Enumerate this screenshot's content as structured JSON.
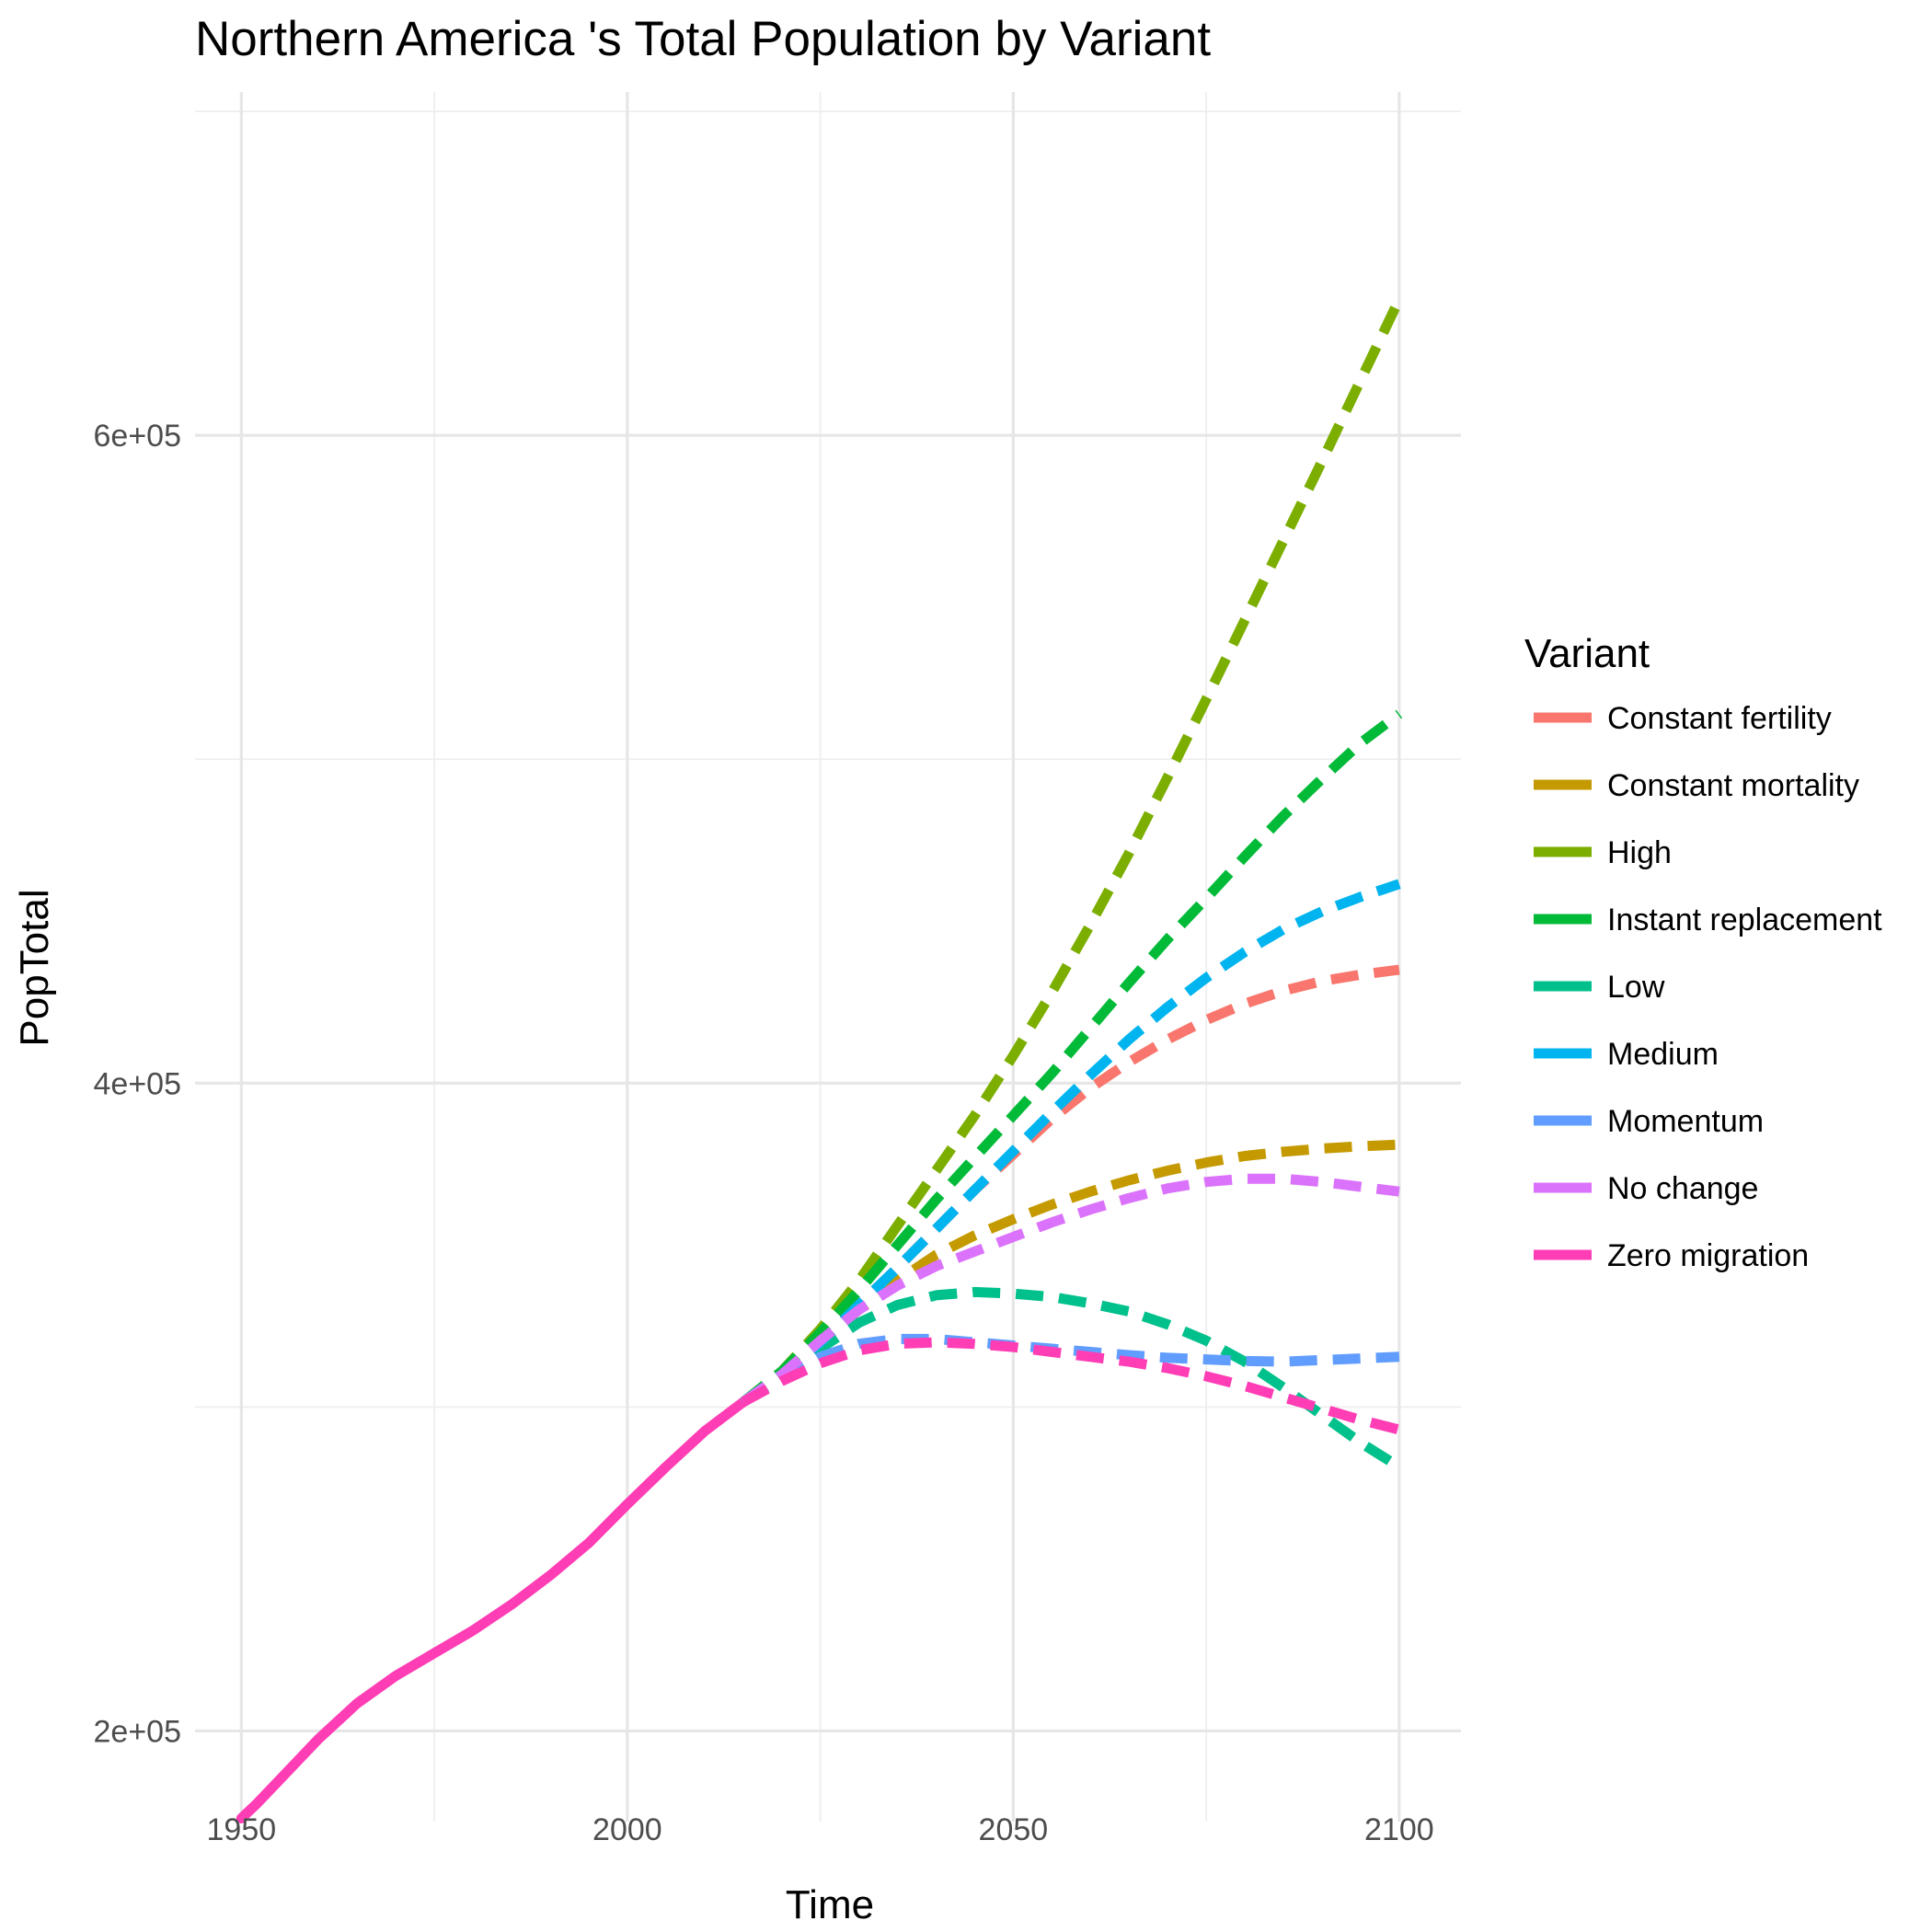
{
  "chart_data": {
    "type": "line",
    "title": "Northern America 's Total Population by Variant",
    "xlabel": "Time",
    "ylabel": "PopTotal",
    "xlim": [
      1944,
      2108
    ],
    "ylim": [
      172000,
      706000
    ],
    "x_ticks": [
      1950,
      2000,
      2050,
      2100
    ],
    "x_tick_labels": [
      "1950",
      "2000",
      "2050",
      "2100"
    ],
    "x_minor_ticks": [
      1975,
      2025,
      2075
    ],
    "y_ticks": [
      200000,
      400000,
      600000
    ],
    "y_tick_labels": [
      "2e+05",
      "4e+05",
      "6e+05"
    ],
    "y_minor_ticks": [
      300000,
      500000,
      700000
    ],
    "grid": true,
    "legend": {
      "title": "Variant",
      "position": "right",
      "entries": [
        "Constant fertility",
        "Constant mortality",
        "High",
        "Instant replacement",
        "Low",
        "Medium",
        "Momentum",
        "No change",
        "Zero migration"
      ]
    },
    "series": [
      {
        "name": "Zero migration",
        "style": "solid",
        "color": "#FF3DB5",
        "x": [
          1950,
          1952,
          1955,
          1960,
          1965,
          1970,
          1975,
          1980,
          1985,
          1990,
          1995,
          2000,
          2005,
          2010,
          2015
        ],
        "y": [
          173000,
          177500,
          185000,
          197500,
          208500,
          217000,
          224000,
          231000,
          239000,
          248000,
          258000,
          270000,
          281500,
          292500,
          301500
        ]
      },
      {
        "name": "Constant fertility",
        "style": "dashed",
        "color": "#F8766D",
        "x": [
          2015,
          2020,
          2025,
          2030,
          2035,
          2040,
          2045,
          2050,
          2055,
          2060,
          2065,
          2070,
          2075,
          2080,
          2085,
          2090,
          2095,
          2100
        ],
        "y": [
          301500,
          310000,
          320000,
          331500,
          343000,
          355000,
          367000,
          378000,
          389000,
          398500,
          406500,
          413500,
          419500,
          424500,
          428500,
          431500,
          433500,
          435000
        ]
      },
      {
        "name": "Constant mortality",
        "style": "dashed",
        "color": "#C49A00",
        "x": [
          2015,
          2020,
          2025,
          2030,
          2035,
          2040,
          2045,
          2050,
          2055,
          2060,
          2065,
          2070,
          2075,
          2080,
          2085,
          2090,
          2095,
          2100
        ],
        "y": [
          301500,
          310000,
          320000,
          330000,
          339000,
          347000,
          353000,
          358000,
          362500,
          366500,
          370000,
          373000,
          375500,
          377500,
          378800,
          379800,
          380500,
          381000
        ]
      },
      {
        "name": "High",
        "style": "dashed",
        "color": "#7CAE00",
        "x": [
          2015,
          2020,
          2025,
          2030,
          2035,
          2040,
          2045,
          2050,
          2055,
          2060,
          2065,
          2070,
          2075,
          2080,
          2085,
          2090,
          2095,
          2100
        ],
        "y": [
          301500,
          311000,
          324000,
          339000,
          356000,
          373000,
          390000,
          408500,
          428000,
          449000,
          471000,
          494500,
          518500,
          543000,
          567500,
          592000,
          617000,
          642000
        ]
      },
      {
        "name": "Instant replacement",
        "style": "dashed",
        "color": "#00BA38",
        "x": [
          2015,
          2020,
          2025,
          2030,
          2035,
          2040,
          2045,
          2050,
          2055,
          2060,
          2065,
          2070,
          2075,
          2080,
          2085,
          2090,
          2095,
          2100
        ],
        "y": [
          301500,
          311000,
          323000,
          336000,
          350000,
          364000,
          377000,
          390000,
          403000,
          417000,
          431000,
          444500,
          457000,
          470000,
          482500,
          494000,
          505000,
          514000
        ]
      },
      {
        "name": "Low",
        "style": "dashed",
        "color": "#00C08B",
        "x": [
          2015,
          2020,
          2025,
          2030,
          2035,
          2040,
          2045,
          2050,
          2055,
          2060,
          2065,
          2070,
          2075,
          2080,
          2085,
          2090,
          2095,
          2100
        ],
        "y": [
          301500,
          309000,
          318000,
          326000,
          331500,
          334500,
          335500,
          335000,
          334000,
          332000,
          329500,
          325500,
          320500,
          314000,
          306000,
          297500,
          289000,
          281500
        ]
      },
      {
        "name": "Medium",
        "style": "dashed",
        "color": "#00B4EF",
        "x": [
          2015,
          2020,
          2025,
          2030,
          2035,
          2040,
          2045,
          2050,
          2055,
          2060,
          2065,
          2070,
          2075,
          2080,
          2085,
          2090,
          2095,
          2100
        ],
        "y": [
          301500,
          310000,
          320000,
          331500,
          343000,
          355000,
          367000,
          379000,
          391000,
          402500,
          413500,
          423500,
          432500,
          440500,
          447500,
          453000,
          457500,
          461500
        ]
      },
      {
        "name": "Momentum",
        "style": "dashed",
        "color": "#619CFF",
        "x": [
          2015,
          2020,
          2025,
          2030,
          2035,
          2040,
          2045,
          2050,
          2055,
          2060,
          2065,
          2070,
          2075,
          2080,
          2085,
          2090,
          2095,
          2100
        ],
        "y": [
          301500,
          309000,
          315500,
          319500,
          321000,
          321000,
          320000,
          319000,
          318000,
          317000,
          316000,
          315200,
          314700,
          314200,
          314000,
          314500,
          315000,
          315500
        ]
      },
      {
        "name": "No change",
        "style": "dashed",
        "color": "#DB72FB",
        "x": [
          2015,
          2020,
          2025,
          2030,
          2035,
          2040,
          2045,
          2050,
          2055,
          2060,
          2065,
          2070,
          2075,
          2080,
          2085,
          2090,
          2095,
          2100
        ],
        "y": [
          301500,
          310000,
          320500,
          330000,
          337500,
          343500,
          348000,
          352500,
          357000,
          361000,
          364500,
          367500,
          369500,
          370500,
          370500,
          369500,
          368000,
          366500
        ]
      },
      {
        "name": "Zero migration",
        "style": "dashed",
        "color": "#FF3DB5",
        "x": [
          2015,
          2020,
          2025,
          2030,
          2035,
          2040,
          2045,
          2050,
          2055,
          2060,
          2065,
          2070,
          2075,
          2080,
          2085,
          2090,
          2095,
          2100,
          2101
        ],
        "y": [
          301500,
          308000,
          313500,
          317500,
          319500,
          320000,
          319500,
          318500,
          317000,
          315500,
          314000,
          312000,
          309500,
          306500,
          303000,
          299500,
          296000,
          293000,
          291500
        ]
      }
    ]
  }
}
